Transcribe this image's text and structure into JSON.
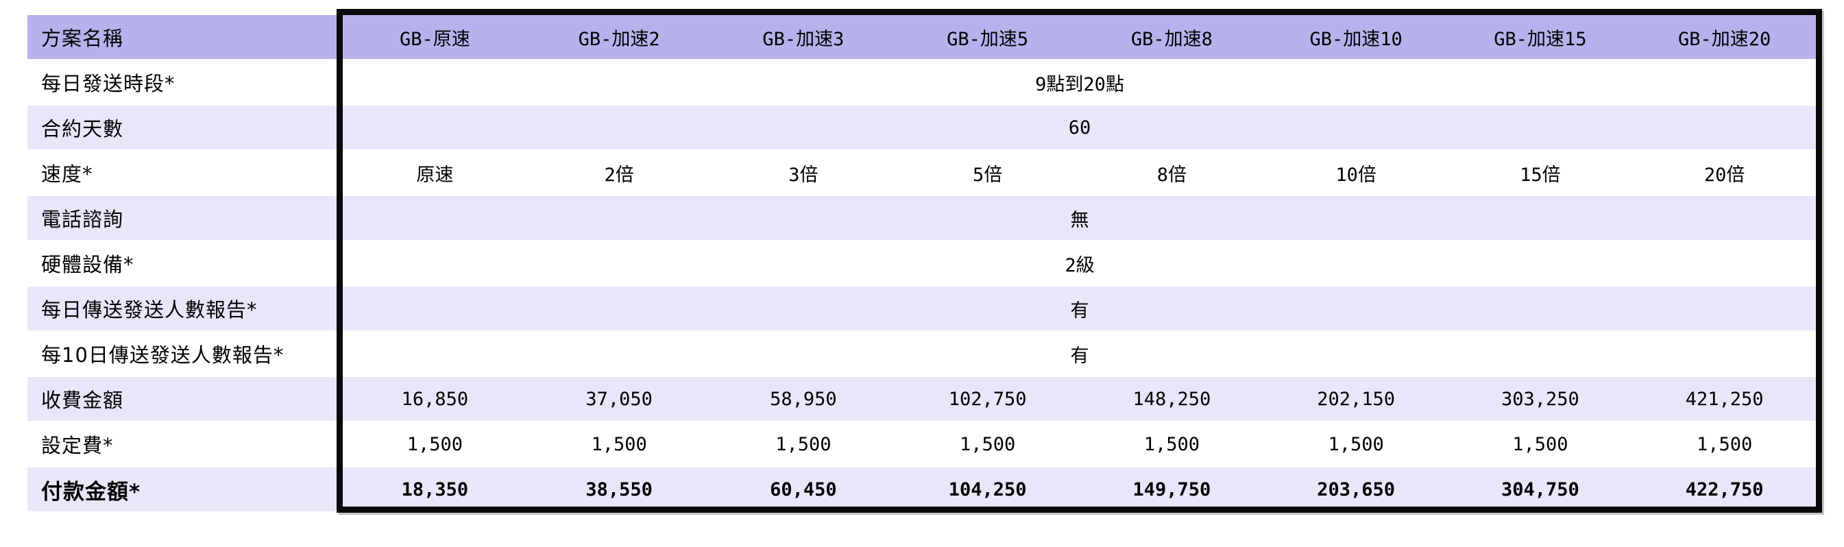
{
  "table": {
    "header_label": "方案名稱",
    "columns": [
      "GB-原速",
      "GB-加速2",
      "GB-加速3",
      "GB-加速5",
      "GB-加速8",
      "GB-加速10",
      "GB-加速15",
      "GB-加速20"
    ],
    "rows": [
      {
        "label": "每日發送時段*",
        "type": "merged",
        "value": "9點到20點"
      },
      {
        "label": "合約天數",
        "type": "merged",
        "value": "60"
      },
      {
        "label": "速度*",
        "type": "values",
        "values": [
          "原速",
          "2倍",
          "3倍",
          "5倍",
          "8倍",
          "10倍",
          "15倍",
          "20倍"
        ]
      },
      {
        "label": "電話諮詢",
        "type": "merged",
        "value": "無"
      },
      {
        "label": "硬體設備*",
        "type": "merged",
        "value": "2級"
      },
      {
        "label": "每日傳送發送人數報告*",
        "type": "merged",
        "value": "有"
      },
      {
        "label": "每10日傳送發送人數報告*",
        "type": "merged",
        "value": "有"
      },
      {
        "label": "收費金額",
        "type": "values",
        "values": [
          "16,850",
          "37,050",
          "58,950",
          "102,750",
          "148,250",
          "202,150",
          "303,250",
          "421,250"
        ]
      },
      {
        "label": "設定費*",
        "type": "values",
        "values": [
          "1,500",
          "1,500",
          "1,500",
          "1,500",
          "1,500",
          "1,500",
          "1,500",
          "1,500"
        ]
      },
      {
        "label": "付款金額*",
        "type": "values",
        "bold": true,
        "values": [
          "18,350",
          "38,550",
          "60,450",
          "104,250",
          "149,750",
          "203,650",
          "304,750",
          "422,750"
        ]
      }
    ],
    "colors": {
      "header_bg": "#b5b2ec",
      "stripe_bg": "#e8e6f9",
      "row_bg": "#ffffff",
      "data_border": "#0b0b0b",
      "text": "#000000"
    }
  }
}
